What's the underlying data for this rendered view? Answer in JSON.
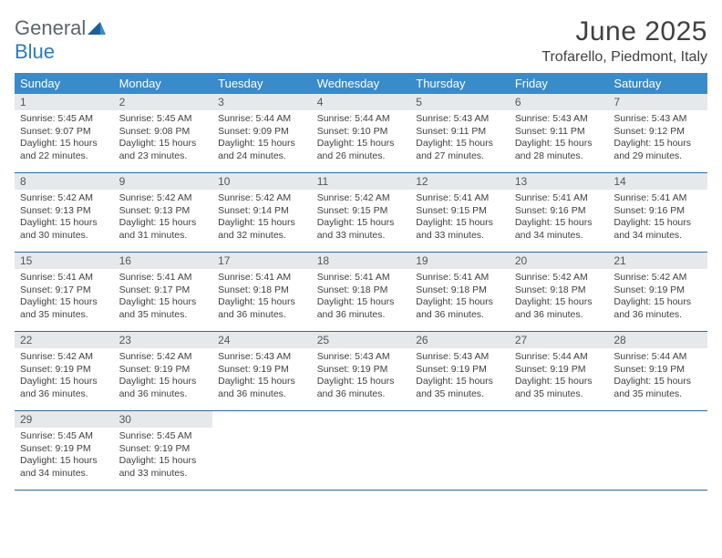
{
  "logo": {
    "text_a": "General",
    "text_b": "Blue"
  },
  "title": "June 2025",
  "location": "Trofarello, Piedmont, Italy",
  "colors": {
    "header_bg": "#3a8bc9",
    "header_text": "#ffffff",
    "daynum_bg": "#e6e9ec",
    "daynum_text": "#555555",
    "border": "#2f6aa0",
    "body_text": "#404040",
    "logo_gray": "#5a6670",
    "logo_blue": "#2b7bbf"
  },
  "day_names": [
    "Sunday",
    "Monday",
    "Tuesday",
    "Wednesday",
    "Thursday",
    "Friday",
    "Saturday"
  ],
  "weeks": [
    [
      {
        "num": "1",
        "sunrise": "Sunrise: 5:45 AM",
        "sunset": "Sunset: 9:07 PM",
        "day1": "Daylight: 15 hours",
        "day2": "and 22 minutes."
      },
      {
        "num": "2",
        "sunrise": "Sunrise: 5:45 AM",
        "sunset": "Sunset: 9:08 PM",
        "day1": "Daylight: 15 hours",
        "day2": "and 23 minutes."
      },
      {
        "num": "3",
        "sunrise": "Sunrise: 5:44 AM",
        "sunset": "Sunset: 9:09 PM",
        "day1": "Daylight: 15 hours",
        "day2": "and 24 minutes."
      },
      {
        "num": "4",
        "sunrise": "Sunrise: 5:44 AM",
        "sunset": "Sunset: 9:10 PM",
        "day1": "Daylight: 15 hours",
        "day2": "and 26 minutes."
      },
      {
        "num": "5",
        "sunrise": "Sunrise: 5:43 AM",
        "sunset": "Sunset: 9:11 PM",
        "day1": "Daylight: 15 hours",
        "day2": "and 27 minutes."
      },
      {
        "num": "6",
        "sunrise": "Sunrise: 5:43 AM",
        "sunset": "Sunset: 9:11 PM",
        "day1": "Daylight: 15 hours",
        "day2": "and 28 minutes."
      },
      {
        "num": "7",
        "sunrise": "Sunrise: 5:43 AM",
        "sunset": "Sunset: 9:12 PM",
        "day1": "Daylight: 15 hours",
        "day2": "and 29 minutes."
      }
    ],
    [
      {
        "num": "8",
        "sunrise": "Sunrise: 5:42 AM",
        "sunset": "Sunset: 9:13 PM",
        "day1": "Daylight: 15 hours",
        "day2": "and 30 minutes."
      },
      {
        "num": "9",
        "sunrise": "Sunrise: 5:42 AM",
        "sunset": "Sunset: 9:13 PM",
        "day1": "Daylight: 15 hours",
        "day2": "and 31 minutes."
      },
      {
        "num": "10",
        "sunrise": "Sunrise: 5:42 AM",
        "sunset": "Sunset: 9:14 PM",
        "day1": "Daylight: 15 hours",
        "day2": "and 32 minutes."
      },
      {
        "num": "11",
        "sunrise": "Sunrise: 5:42 AM",
        "sunset": "Sunset: 9:15 PM",
        "day1": "Daylight: 15 hours",
        "day2": "and 33 minutes."
      },
      {
        "num": "12",
        "sunrise": "Sunrise: 5:41 AM",
        "sunset": "Sunset: 9:15 PM",
        "day1": "Daylight: 15 hours",
        "day2": "and 33 minutes."
      },
      {
        "num": "13",
        "sunrise": "Sunrise: 5:41 AM",
        "sunset": "Sunset: 9:16 PM",
        "day1": "Daylight: 15 hours",
        "day2": "and 34 minutes."
      },
      {
        "num": "14",
        "sunrise": "Sunrise: 5:41 AM",
        "sunset": "Sunset: 9:16 PM",
        "day1": "Daylight: 15 hours",
        "day2": "and 34 minutes."
      }
    ],
    [
      {
        "num": "15",
        "sunrise": "Sunrise: 5:41 AM",
        "sunset": "Sunset: 9:17 PM",
        "day1": "Daylight: 15 hours",
        "day2": "and 35 minutes."
      },
      {
        "num": "16",
        "sunrise": "Sunrise: 5:41 AM",
        "sunset": "Sunset: 9:17 PM",
        "day1": "Daylight: 15 hours",
        "day2": "and 35 minutes."
      },
      {
        "num": "17",
        "sunrise": "Sunrise: 5:41 AM",
        "sunset": "Sunset: 9:18 PM",
        "day1": "Daylight: 15 hours",
        "day2": "and 36 minutes."
      },
      {
        "num": "18",
        "sunrise": "Sunrise: 5:41 AM",
        "sunset": "Sunset: 9:18 PM",
        "day1": "Daylight: 15 hours",
        "day2": "and 36 minutes."
      },
      {
        "num": "19",
        "sunrise": "Sunrise: 5:41 AM",
        "sunset": "Sunset: 9:18 PM",
        "day1": "Daylight: 15 hours",
        "day2": "and 36 minutes."
      },
      {
        "num": "20",
        "sunrise": "Sunrise: 5:42 AM",
        "sunset": "Sunset: 9:18 PM",
        "day1": "Daylight: 15 hours",
        "day2": "and 36 minutes."
      },
      {
        "num": "21",
        "sunrise": "Sunrise: 5:42 AM",
        "sunset": "Sunset: 9:19 PM",
        "day1": "Daylight: 15 hours",
        "day2": "and 36 minutes."
      }
    ],
    [
      {
        "num": "22",
        "sunrise": "Sunrise: 5:42 AM",
        "sunset": "Sunset: 9:19 PM",
        "day1": "Daylight: 15 hours",
        "day2": "and 36 minutes."
      },
      {
        "num": "23",
        "sunrise": "Sunrise: 5:42 AM",
        "sunset": "Sunset: 9:19 PM",
        "day1": "Daylight: 15 hours",
        "day2": "and 36 minutes."
      },
      {
        "num": "24",
        "sunrise": "Sunrise: 5:43 AM",
        "sunset": "Sunset: 9:19 PM",
        "day1": "Daylight: 15 hours",
        "day2": "and 36 minutes."
      },
      {
        "num": "25",
        "sunrise": "Sunrise: 5:43 AM",
        "sunset": "Sunset: 9:19 PM",
        "day1": "Daylight: 15 hours",
        "day2": "and 36 minutes."
      },
      {
        "num": "26",
        "sunrise": "Sunrise: 5:43 AM",
        "sunset": "Sunset: 9:19 PM",
        "day1": "Daylight: 15 hours",
        "day2": "and 35 minutes."
      },
      {
        "num": "27",
        "sunrise": "Sunrise: 5:44 AM",
        "sunset": "Sunset: 9:19 PM",
        "day1": "Daylight: 15 hours",
        "day2": "and 35 minutes."
      },
      {
        "num": "28",
        "sunrise": "Sunrise: 5:44 AM",
        "sunset": "Sunset: 9:19 PM",
        "day1": "Daylight: 15 hours",
        "day2": "and 35 minutes."
      }
    ],
    [
      {
        "num": "29",
        "sunrise": "Sunrise: 5:45 AM",
        "sunset": "Sunset: 9:19 PM",
        "day1": "Daylight: 15 hours",
        "day2": "and 34 minutes."
      },
      {
        "num": "30",
        "sunrise": "Sunrise: 5:45 AM",
        "sunset": "Sunset: 9:19 PM",
        "day1": "Daylight: 15 hours",
        "day2": "and 33 minutes."
      },
      null,
      null,
      null,
      null,
      null
    ]
  ]
}
